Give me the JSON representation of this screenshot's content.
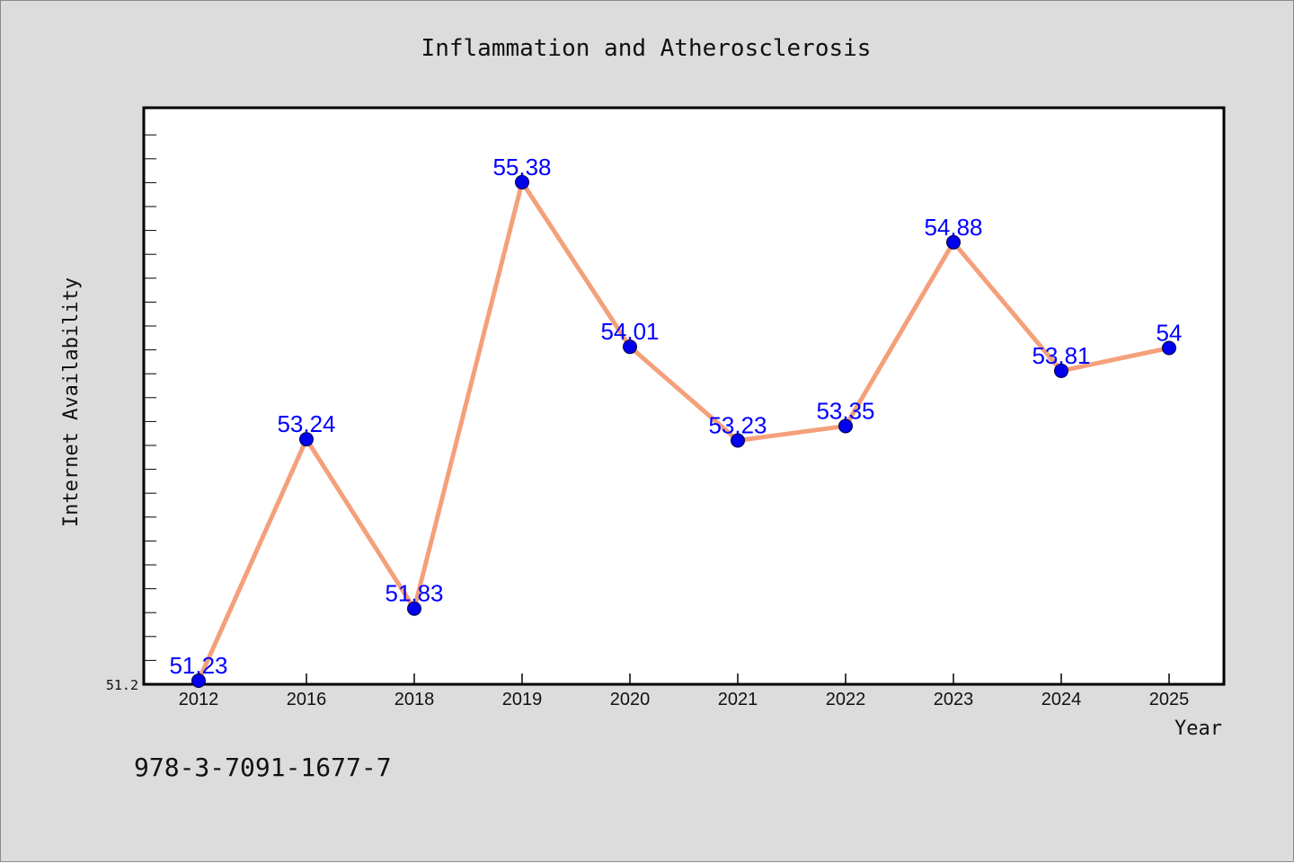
{
  "chart_data": {
    "type": "line",
    "title": "Inflammation and Atherosclerosis",
    "xlabel": "Year",
    "ylabel": "Internet Availability",
    "categories": [
      "2012",
      "2016",
      "2018",
      "2019",
      "2020",
      "2021",
      "2022",
      "2023",
      "2024",
      "2025"
    ],
    "series": [
      {
        "values": [
          51.23,
          53.24,
          51.83,
          55.38,
          54.01,
          53.23,
          53.35,
          54.88,
          53.81,
          54
        ],
        "data_labels": [
          "51.23",
          "53.24",
          "51.83",
          "55.38",
          "54.01",
          "53.23",
          "53.35",
          "54.88",
          "53.81",
          "54"
        ]
      }
    ],
    "ylim": [
      51.2,
      56.0
    ],
    "y_tick_labels": [
      "51.2"
    ],
    "grid": false,
    "legend": "none"
  },
  "annotation": "978-3-7091-1677-7",
  "colors": {
    "background": "#dcdcdc",
    "plot_background": "#ffffff",
    "line": "#f4a07a",
    "marker": "#0000ee",
    "data_label": "#0000ff",
    "text": "#111111"
  }
}
